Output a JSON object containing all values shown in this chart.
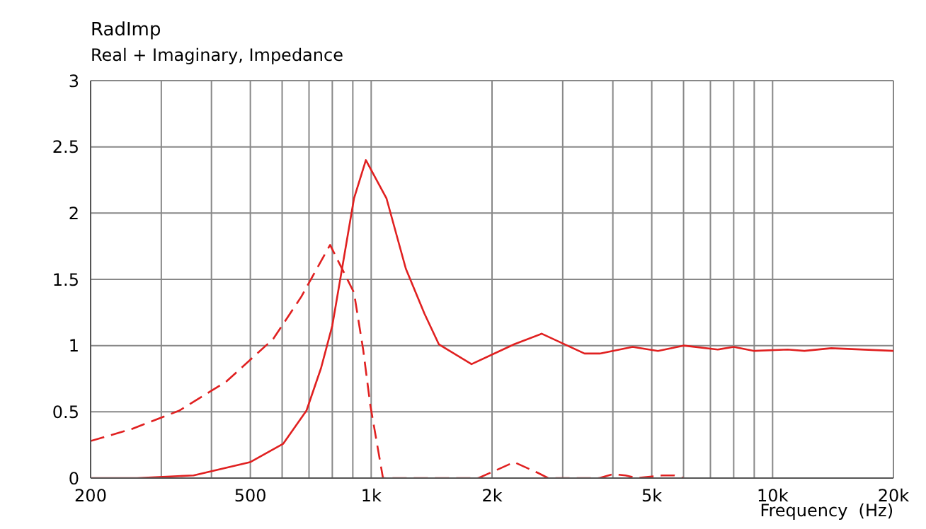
{
  "chart_data": {
    "type": "line",
    "title": "RadImp",
    "subtitle": "Real + Imaginary, Impedance",
    "xlabel": "Frequency  (Hz)",
    "log": "x",
    "grid": true,
    "marker": "none",
    "xlim": [
      200,
      20000
    ],
    "ylim": [
      0,
      3
    ],
    "xticks": [
      200,
      {
        "value": 300,
        "label": null
      },
      {
        "value": 400,
        "label": null
      },
      500,
      {
        "value": 600,
        "label": null
      },
      {
        "value": 700,
        "label": null
      },
      {
        "value": 800,
        "label": null
      },
      {
        "value": 900,
        "label": null
      },
      {
        "value": 1000,
        "label": "1k"
      },
      {
        "value": 2000,
        "label": "2k"
      },
      {
        "value": 3000,
        "label": null
      },
      {
        "value": 4000,
        "label": null
      },
      {
        "value": 5000,
        "label": "5k"
      },
      {
        "value": 6000,
        "label": null
      },
      {
        "value": 7000,
        "label": null
      },
      {
        "value": 8000,
        "label": null
      },
      {
        "value": 9000,
        "label": null
      },
      {
        "value": 10000,
        "label": "10k"
      },
      {
        "value": 20000,
        "label": "20k"
      }
    ],
    "yticks": [
      0,
      0.5,
      1,
      1.5,
      2,
      2.5,
      3
    ],
    "series": [
      {
        "color": "#e02020",
        "line_style": "solid",
        "x": [
          200,
          261,
          361,
          499,
          604,
          690,
          750,
          800,
          846,
          906,
          970,
          1092,
          1220,
          1358,
          1474,
          1778,
          2272,
          2660,
          3400,
          3710,
          4480,
          5180,
          6000,
          7300,
          8000,
          9000,
          10900,
          12000,
          14000,
          20000
        ],
        "values": [
          0,
          0,
          0.02,
          0.12,
          0.26,
          0.51,
          0.83,
          1.15,
          1.58,
          2.11,
          2.4,
          2.11,
          1.58,
          1.24,
          1.01,
          0.86,
          1.01,
          1.09,
          0.94,
          0.94,
          0.99,
          0.96,
          1,
          0.97,
          0.99,
          0.96,
          0.97,
          0.96,
          0.98,
          0.96
        ]
      },
      {
        "color": "#e02020",
        "line_style": "dashed",
        "x": [
          200,
          253,
          333,
          436,
          570,
          670,
          790,
          906,
          955,
          995,
          1070,
          1850,
          2270,
          2600,
          2760,
          3700,
          4000,
          4300,
          4600,
          5300,
          5700,
          6000
        ],
        "values": [
          0.28,
          0.37,
          0.51,
          0.73,
          1.05,
          1.37,
          1.76,
          1.4,
          0.97,
          0.55,
          0,
          0,
          0.12,
          0.04,
          0,
          0,
          0.03,
          0.02,
          0,
          0.02,
          0.02,
          0
        ]
      }
    ]
  }
}
